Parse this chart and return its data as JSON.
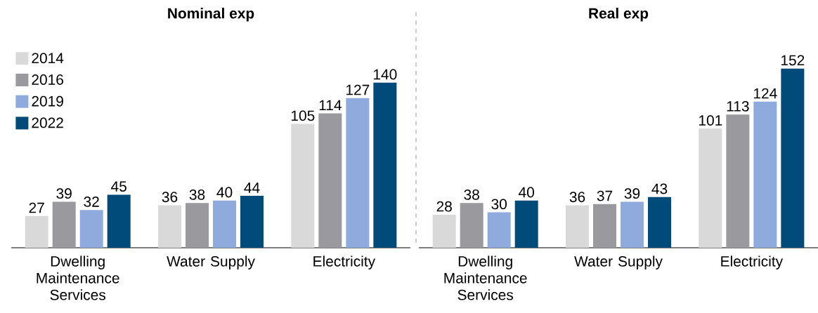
{
  "chart_data": [
    {
      "type": "bar",
      "title": "Nominal exp",
      "categories": [
        "Dwelling Maintenance Services",
        "Water Supply",
        "Electricity"
      ],
      "data_labels": true,
      "legend": "top left",
      "series": [
        {
          "name": "2014",
          "color": "#d9d9d9",
          "values": [
            27,
            36,
            105
          ]
        },
        {
          "name": "2016",
          "color": "#9a9a9e",
          "values": [
            39,
            38,
            114
          ]
        },
        {
          "name": "2019",
          "color": "#8faadc",
          "values": [
            32,
            40,
            127
          ]
        },
        {
          "name": "2022",
          "color": "#004b7a",
          "values": [
            45,
            44,
            140
          ]
        }
      ]
    },
    {
      "type": "bar",
      "title": "Real exp",
      "categories": [
        "Dwelling Maintenance Services",
        "Water Supply",
        "Electricity"
      ],
      "data_labels": true,
      "series": [
        {
          "color": "#d9d9d9",
          "values": [
            28,
            36,
            101
          ]
        },
        {
          "color": "#9a9a9e",
          "values": [
            38,
            37,
            113
          ]
        },
        {
          "color": "#8faadc",
          "values": [
            30,
            39,
            124
          ]
        },
        {
          "color": "#004b7a",
          "values": [
            40,
            43,
            152
          ]
        }
      ]
    }
  ]
}
